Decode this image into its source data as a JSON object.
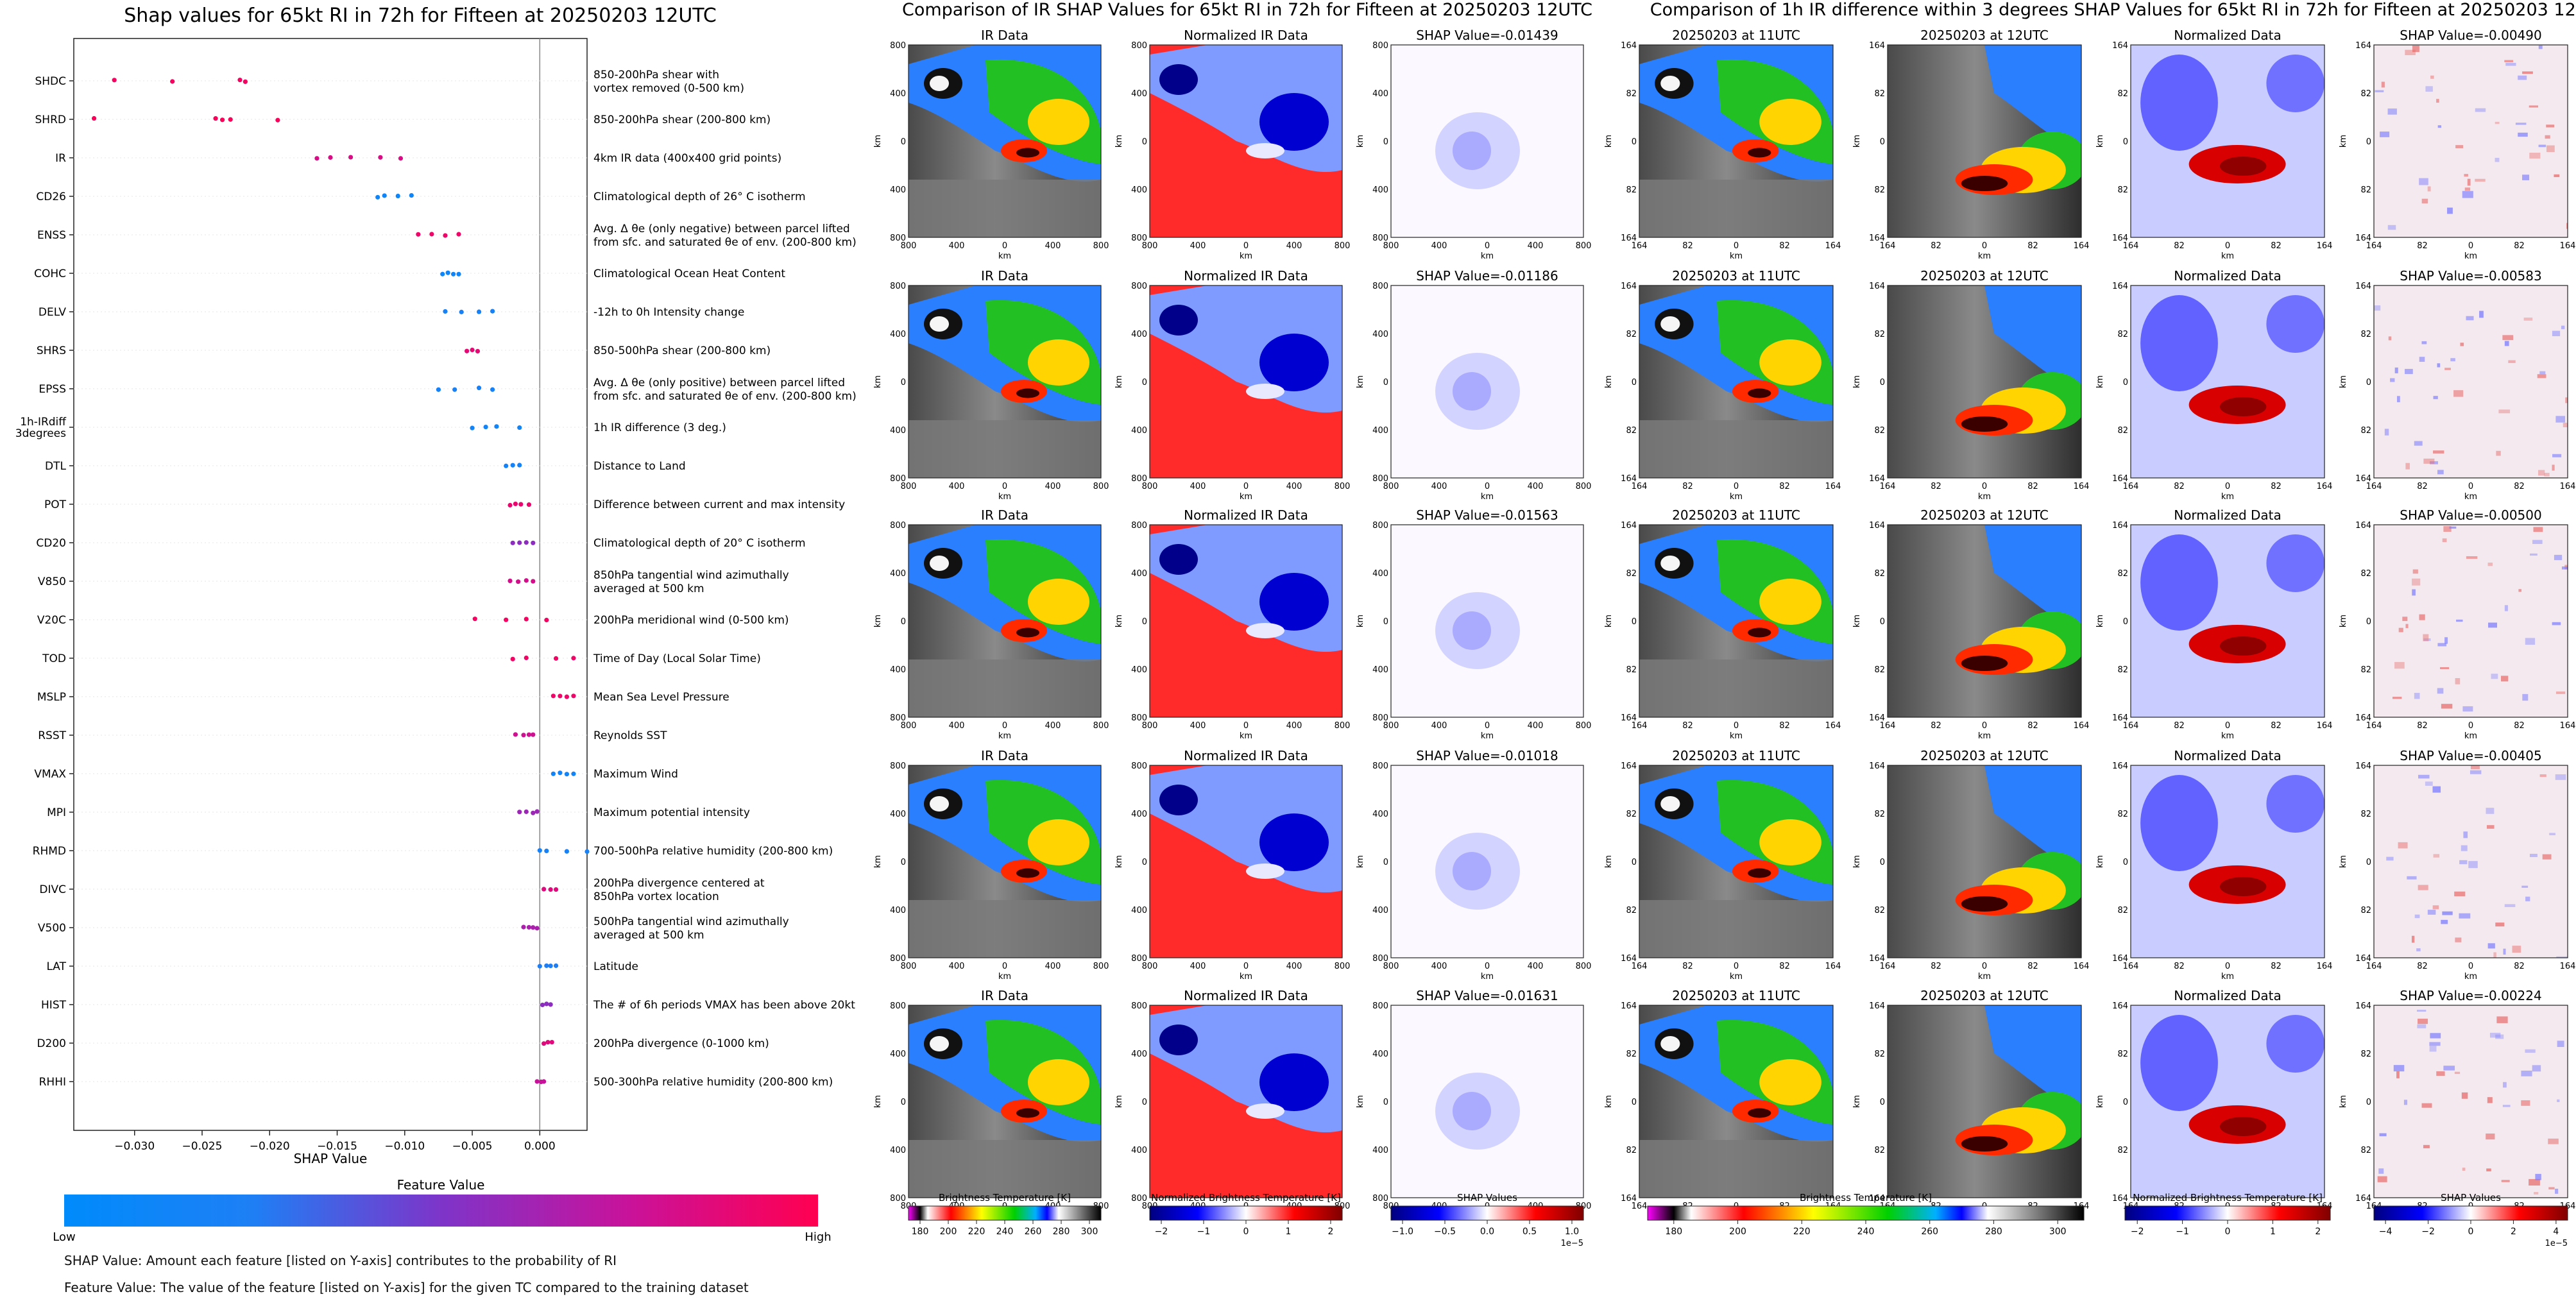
{
  "chart_data": {
    "type": "scatter",
    "title": "Shap values for 65kt RI in 72h for Fifteen at 20250203 12UTC",
    "xlabel": "SHAP Value",
    "xlim": [
      -0.0345,
      0.0035
    ],
    "xticks": [
      -0.03,
      -0.025,
      -0.02,
      -0.015,
      -0.01,
      -0.005,
      0.0
    ],
    "xtick_labels": [
      "−0.030",
      "−0.025",
      "−0.020",
      "−0.015",
      "−0.010",
      "−0.005",
      "0.000"
    ],
    "features": [
      {
        "code": "SHDC",
        "description": "850-200hPa shear with\nvortex removed (0-500 km)",
        "fv": 0.95,
        "shap": [
          -0.0315,
          -0.0272,
          -0.0218,
          -0.0222
        ]
      },
      {
        "code": "SHRD",
        "description": "850-200hPa shear (200-800 km)",
        "fv": 0.97,
        "shap": [
          -0.033,
          -0.024,
          -0.0235,
          -0.0229,
          -0.0194
        ]
      },
      {
        "code": "IR",
        "description": "4km IR data (400x400 grid points)",
        "fv": 0.82,
        "shap": [
          -0.0165,
          -0.0155,
          -0.014,
          -0.0118,
          -0.0103
        ]
      },
      {
        "code": "CD26",
        "description": "Climatological depth of 26° C isotherm",
        "fv": 0.12,
        "shap": [
          -0.012,
          -0.0115,
          -0.0105,
          -0.0095
        ]
      },
      {
        "code": "ENSS",
        "description": "Avg. Δ θe (only negative) between parcel lifted\nfrom sfc. and saturated θe of env. (200-800 km)",
        "fv": 0.92,
        "shap": [
          -0.009,
          -0.008,
          -0.007,
          -0.006
        ]
      },
      {
        "code": "COHC",
        "description": "Climatological Ocean Heat Content",
        "fv": 0.12,
        "shap": [
          -0.0072,
          -0.0068,
          -0.0064,
          -0.006
        ]
      },
      {
        "code": "DELV",
        "description": "-12h to 0h Intensity change",
        "fv": 0.2,
        "shap": [
          -0.007,
          -0.0058,
          -0.0045,
          -0.0035
        ]
      },
      {
        "code": "SHRS",
        "description": "850-500hPa shear (200-800 km)",
        "fv": 0.88,
        "shap": [
          -0.0054,
          -0.005,
          -0.0046
        ]
      },
      {
        "code": "EPSS",
        "description": "Avg. Δ θe (only positive) between parcel lifted\nfrom sfc. and saturated θe of env. (200-800 km)",
        "fv": 0.2,
        "shap": [
          -0.0075,
          -0.0063,
          -0.0045,
          -0.0035
        ]
      },
      {
        "code": "1h-IRdiff\n3degrees",
        "description": "1h IR difference (3 deg.)",
        "fv": 0.15,
        "shap": [
          -0.005,
          -0.004,
          -0.0032,
          -0.0015
        ]
      },
      {
        "code": "DTL",
        "description": "Distance to Land",
        "fv": 0.18,
        "shap": [
          -0.0025,
          -0.002,
          -0.0015
        ]
      },
      {
        "code": "POT",
        "description": "Difference between current and max intensity",
        "fv": 0.9,
        "shap": [
          -0.0022,
          -0.0018,
          -0.0014,
          -0.0008
        ]
      },
      {
        "code": "CD20",
        "description": "Climatological depth of 20° C isotherm",
        "fv": 0.55,
        "shap": [
          -0.002,
          -0.0015,
          -0.001,
          -0.0005
        ]
      },
      {
        "code": "V850",
        "description": "850hPa tangential wind azimuthally\naveraged at 500 km",
        "fv": 0.8,
        "shap": [
          -0.0022,
          -0.0016,
          -0.001,
          -0.0005
        ]
      },
      {
        "code": "V20C",
        "description": "200hPa meridional wind (0-500 km)",
        "fv": 0.95,
        "shap": [
          -0.0048,
          -0.0025,
          -0.001,
          0.0005
        ]
      },
      {
        "code": "TOD",
        "description": "Time of Day (Local Solar Time)",
        "fv": 0.93,
        "shap": [
          -0.002,
          -0.001,
          0.0012,
          0.0025
        ]
      },
      {
        "code": "MSLP",
        "description": "Mean Sea Level Pressure",
        "fv": 0.92,
        "shap": [
          0.001,
          0.0015,
          0.002,
          0.0025
        ]
      },
      {
        "code": "RSST",
        "description": "Reynolds SST",
        "fv": 0.78,
        "shap": [
          -0.0018,
          -0.0012,
          -0.0008,
          -0.0005
        ]
      },
      {
        "code": "VMAX",
        "description": "Maximum Wind",
        "fv": 0.15,
        "shap": [
          0.001,
          0.0015,
          0.002,
          0.0025
        ]
      },
      {
        "code": "MPI",
        "description": "Maximum potential intensity",
        "fv": 0.6,
        "shap": [
          -0.0015,
          -0.001,
          -0.0005,
          -0.0002
        ]
      },
      {
        "code": "RHMD",
        "description": "700-500hPa relative humidity (200-800 km)",
        "fv": 0.2,
        "shap": [
          0.0,
          0.0005,
          0.002,
          0.0035
        ]
      },
      {
        "code": "DIVC",
        "description": "200hPa divergence centered at\n850hPa vortex location",
        "fv": 0.85,
        "shap": [
          0.0003,
          0.0008,
          0.0012
        ]
      },
      {
        "code": "V500",
        "description": "500hPa tangential wind azimuthally\naveraged at 500 km",
        "fv": 0.65,
        "shap": [
          -0.0012,
          -0.0008,
          -0.0005,
          -0.0002
        ]
      },
      {
        "code": "LAT",
        "description": "Latitude",
        "fv": 0.25,
        "shap": [
          0.0,
          0.0005,
          0.0008,
          0.0012
        ]
      },
      {
        "code": "HIST",
        "description": "The # of 6h periods VMAX has been above 20kt",
        "fv": 0.55,
        "shap": [
          0.0002,
          0.0005,
          0.0008
        ]
      },
      {
        "code": "D200",
        "description": "200hPa divergence (0-1000 km)",
        "fv": 0.85,
        "shap": [
          0.0003,
          0.0006,
          0.0009
        ]
      },
      {
        "code": "RHHI",
        "description": "500-300hPa relative humidity (200-800 km)",
        "fv": 0.75,
        "shap": [
          -0.0002,
          0.0001,
          0.0003
        ]
      }
    ],
    "colorbar": {
      "title": "Feature Value",
      "low_label": "Low",
      "high_label": "High",
      "stops": [
        "#008bfb",
        "#1e7ff5",
        "#7e34c9",
        "#c9129a",
        "#ff0051"
      ]
    }
  },
  "notes": {
    "line1": "SHAP Value: Amount each feature [listed on Y-axis] contributes to the probability of RI",
    "line2": "Feature Value: The value of the feature [listed on Y-axis] for the given TC compared to the training dataset"
  },
  "panel_groups": [
    {
      "title": "Comparison of IR SHAP Values for 65kt RI in 72h for Fifteen at 20250203 12UTC",
      "columns": [
        {
          "kind": "ir",
          "title": "IR Data"
        },
        {
          "kind": "norm",
          "title": "Normalized IR Data"
        },
        {
          "kind": "shap",
          "title": "SHAP Value",
          "row_values": [
            "-0.01439",
            "-0.01186",
            "-0.01563",
            "-0.01018",
            "-0.01631"
          ]
        }
      ],
      "axis_ticks": [
        "800",
        "400",
        "0",
        "400",
        "800"
      ],
      "axis_label": "km",
      "colorbars": [
        {
          "title": "Brightness Temperature [K]",
          "ticks": [
            "180",
            "200",
            "220",
            "240",
            "260",
            "280",
            "300"
          ],
          "exponent": ""
        },
        {
          "title": "Normalized Brightness Temperature [K]",
          "ticks": [
            "−2",
            "−1",
            "0",
            "1",
            "2"
          ],
          "exponent": ""
        },
        {
          "title": "SHAP Values",
          "ticks": [
            "−1.0",
            "−0.5",
            "0.0",
            "0.5",
            "1.0"
          ],
          "exponent": "1e−5"
        }
      ]
    },
    {
      "title": "Comparison of 1h IR difference within 3 degrees SHAP Values for 65kt RI in 72h for Fifteen at 20250203 12UTC",
      "columns": [
        {
          "kind": "ir",
          "title": "20250203 at 11UTC"
        },
        {
          "kind": "ir",
          "title": "20250203 at 12UTC"
        },
        {
          "kind": "norm",
          "title": "Normalized Data"
        },
        {
          "kind": "shap",
          "title": "SHAP Value",
          "row_values": [
            "-0.00490",
            "-0.00583",
            "-0.00500",
            "-0.00405",
            "-0.00224"
          ]
        }
      ],
      "axis_ticks": [
        "164",
        "82",
        "0",
        "82",
        "164"
      ],
      "axis_label": "km",
      "colorbars": [
        {
          "title": "Brightness Temperature [K]",
          "ticks": [
            "180",
            "200",
            "220",
            "240",
            "260",
            "280",
            "300"
          ],
          "exponent": ""
        },
        {
          "title": "Normalized Brightness Temperature [K]",
          "ticks": [
            "−2",
            "−1",
            "0",
            "1",
            "2"
          ],
          "exponent": ""
        },
        {
          "title": "SHAP Values",
          "ticks": [
            "−4",
            "−2",
            "0",
            "2",
            "4"
          ],
          "exponent": "1e−5"
        }
      ]
    }
  ]
}
